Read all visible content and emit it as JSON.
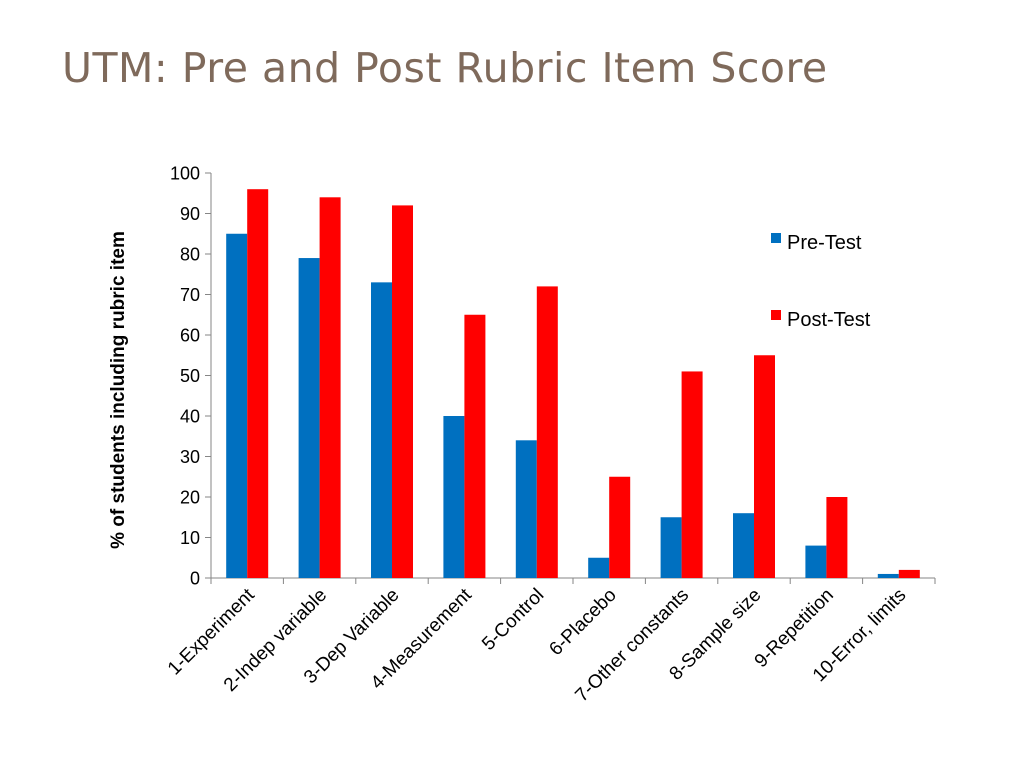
{
  "slide": {
    "title": "UTM: Pre and Post Rubric Item Score"
  },
  "chart_data": {
    "type": "bar",
    "title": "",
    "xlabel": "",
    "ylabel": "% of students including rubric item",
    "ylim": [
      0,
      100
    ],
    "yticks": [
      0,
      10,
      20,
      30,
      40,
      50,
      60,
      70,
      80,
      90,
      100
    ],
    "grid": false,
    "legend_position": "right",
    "categories": [
      "1-Experiment",
      "2-Indep variable",
      "3-Dep Variable",
      "4-Measurement",
      "5-Control",
      "6-Placebo",
      "7-Other constants",
      "8-Sample size",
      "9-Repetition",
      "10-Error, limits"
    ],
    "series": [
      {
        "name": "Pre-Test",
        "color": "#0070c0",
        "values": [
          85,
          79,
          73,
          40,
          34,
          5,
          15,
          16,
          8,
          1
        ]
      },
      {
        "name": "Post-Test",
        "color": "#ff0000",
        "values": [
          96,
          94,
          92,
          65,
          72,
          25,
          51,
          55,
          20,
          2
        ]
      }
    ]
  }
}
